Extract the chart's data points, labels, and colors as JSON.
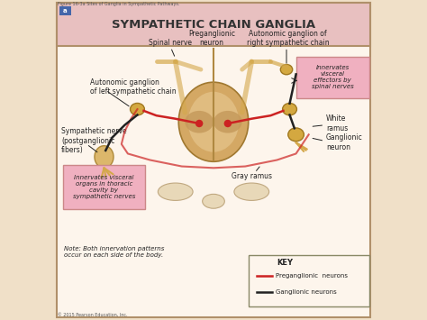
{
  "title": "SYMPATHETIC CHAIN GANGLIA",
  "figure_label": "Figure 16-3a Sites of Ganglia in Sympathetic Pathways.",
  "copyright": "© 2015 Pearson Education, Inc.",
  "bg_color": "#f5e6d0",
  "header_color": "#e8c8c8",
  "border_color": "#c0a080",
  "body_bg": "#fdf5ec",
  "spine_color": "#d4a84b",
  "nerve_color": "#d4a84b",
  "preganglionic_color": "#cc2222",
  "ganglionic_color": "#222222",
  "ganglion_body_color": "#e8c080",
  "spinal_cord_color": "#d4a864",
  "highlight_box_color": "#f5b8c0",
  "labels": {
    "spinal_nerve": "Spinal nerve",
    "preganglionic": "Preganglionic\nneuron",
    "autonomic_right": "Autonomic ganglion of\nright sympathetic chain",
    "autonomic_left": "Autonomic ganglion\nof left sympathetic chain",
    "sympathetic_nerve": "Sympathetic nerve\n(postganglionic\nfibers)",
    "innervates_visceral": "Innervates visceral\norgans in thoracic\ncavity by\nsympathetic nerves",
    "innervates_effectors": "Innervates\nvisceral\neffectors by\nspinal nerves",
    "white_ramus": "White\nramus",
    "ganglionic_neuron": "Ganglionic\nneuron",
    "gray_ramus": "Gray ramus",
    "note": "Note: Both innervation patterns\noccur on each side of the body.",
    "key_title": "KEY",
    "key_pre": "Preganglionic  neurons",
    "key_gang": "Ganglionic neurons"
  }
}
